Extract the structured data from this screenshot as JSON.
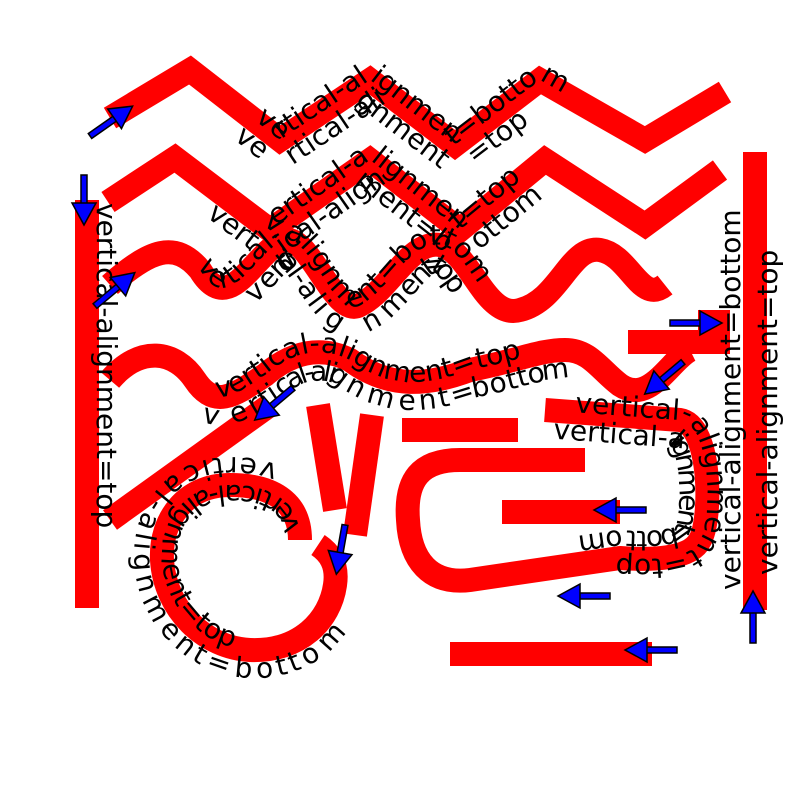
{
  "labels": {
    "bottom": "vertical-alignment=bottom",
    "top": "vertical-alignment=top"
  },
  "colors": {
    "path": "#ff0000",
    "arrow": "#0000ff",
    "text": "#000000",
    "background": "#ffffff"
  },
  "icons": {
    "direction_marker": "arrow-icon"
  }
}
